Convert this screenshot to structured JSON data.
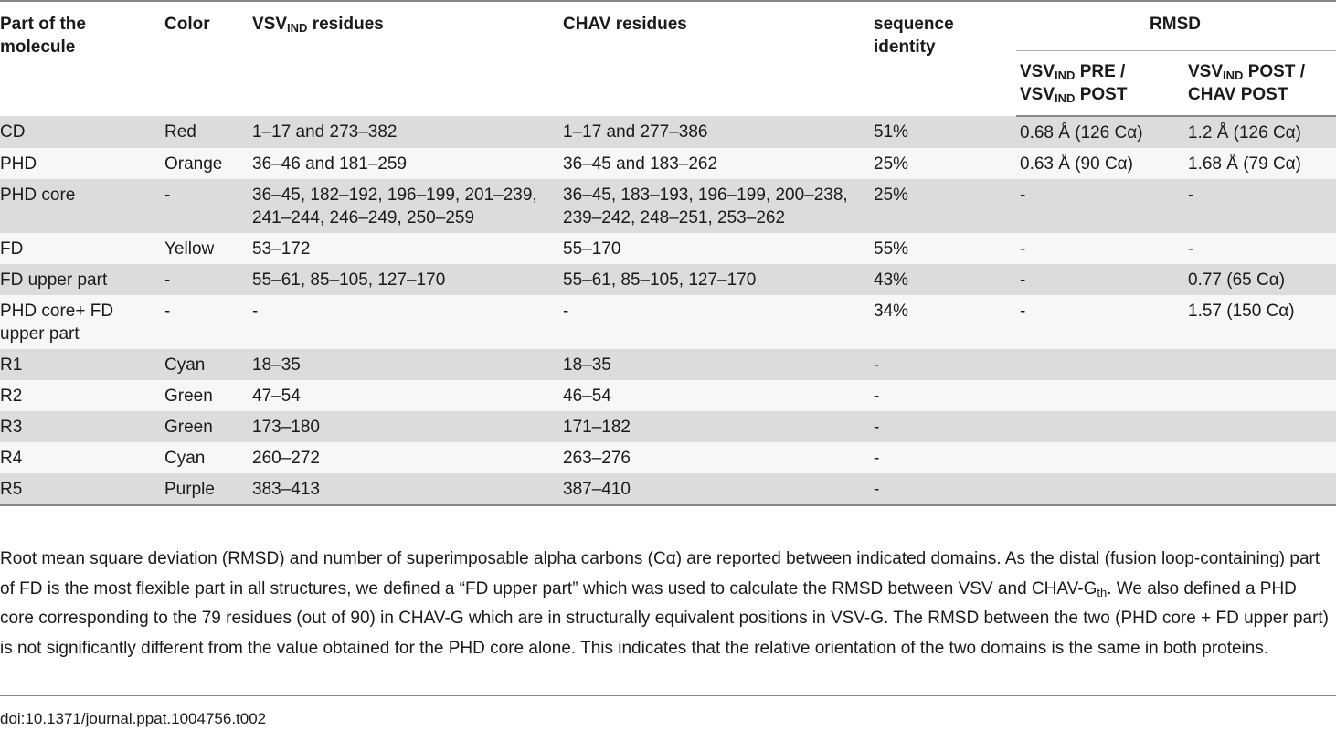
{
  "headers": {
    "part": "Part of the molecule",
    "color": "Color",
    "vsv_prefix": "VSV",
    "vsv_sub": "IND",
    "vsv_suffix": " residues",
    "chav": "CHAV residues",
    "seq_identity": "sequence identity",
    "rmsd": "RMSD",
    "rmsd1_a": "VSV",
    "rmsd1_a_sub": "IND",
    "rmsd1_b": " PRE /",
    "rmsd1_c": "VSV",
    "rmsd1_c_sub": "IND",
    "rmsd1_d": " POST",
    "rmsd2_a": "VSV",
    "rmsd2_a_sub": "IND",
    "rmsd2_b": " POST /",
    "rmsd2_c": "CHAV POST"
  },
  "rows": [
    {
      "part": "CD",
      "color": "Red",
      "vsv": "1–17 and 273–382",
      "chav": "1–17 and 277–386",
      "identity": "51%",
      "rmsd_pre_post": "0.68 Å (126 Cα)",
      "rmsd_post_chav": "1.2 Å (126 Cα)"
    },
    {
      "part": "PHD",
      "color": "Orange",
      "vsv": "36–46 and 181–259",
      "chav": "36–45 and 183–262",
      "identity": "25%",
      "rmsd_pre_post": "0.63 Å (90 Cα)",
      "rmsd_post_chav": "1.68 Å (79 Cα)"
    },
    {
      "part": "PHD core",
      "color": "-",
      "vsv": "36–45, 182–192, 196–199, 201–239, 241–244, 246–249, 250–259",
      "chav": "36–45, 183–193, 196–199, 200–238, 239–242, 248–251, 253–262",
      "identity": "25%",
      "rmsd_pre_post": "-",
      "rmsd_post_chav": "-"
    },
    {
      "part": "FD",
      "color": "Yellow",
      "vsv": "53–172",
      "chav": "55–170",
      "identity": "55%",
      "rmsd_pre_post": "-",
      "rmsd_post_chav": "-"
    },
    {
      "part": "FD upper part",
      "color": "-",
      "vsv": "55–61, 85–105, 127–170",
      "chav": "55–61, 85–105, 127–170",
      "identity": "43%",
      "rmsd_pre_post": "-",
      "rmsd_post_chav": "0.77 (65 Cα)"
    },
    {
      "part": "PHD core+ FD upper part",
      "color": "-",
      "vsv": "-",
      "chav": "-",
      "identity": "34%",
      "rmsd_pre_post": "-",
      "rmsd_post_chav": "1.57 (150 Cα)"
    },
    {
      "part": "R1",
      "color": "Cyan",
      "vsv": "18–35",
      "chav": "18–35",
      "identity": "-",
      "rmsd_pre_post": "",
      "rmsd_post_chav": ""
    },
    {
      "part": "R2",
      "color": "Green",
      "vsv": "47–54",
      "chav": "46–54",
      "identity": "-",
      "rmsd_pre_post": "",
      "rmsd_post_chav": ""
    },
    {
      "part": "R3",
      "color": "Green",
      "vsv": "173–180",
      "chav": "171–182",
      "identity": "-",
      "rmsd_pre_post": "",
      "rmsd_post_chav": ""
    },
    {
      "part": "R4",
      "color": "Cyan",
      "vsv": "260–272",
      "chav": "263–276",
      "identity": "-",
      "rmsd_pre_post": "",
      "rmsd_post_chav": ""
    },
    {
      "part": "R5",
      "color": "Purple",
      "vsv": "383–413",
      "chav": "387–410",
      "identity": "-",
      "rmsd_pre_post": "",
      "rmsd_post_chav": ""
    }
  ],
  "footnote": {
    "text_before_sub": "Root mean square deviation (RMSD) and number of superimposable alpha carbons (Cα) are reported between indicated domains. As the distal (fusion loop-containing) part of FD is the most flexible part in all structures, we defined a “FD upper part” which was used to calculate the RMSD between VSV and CHAV-G",
    "sub": "th",
    "text_after_sub": ". We also defined a PHD core corresponding to the 79 residues (out of 90) in CHAV-G which are in structurally equivalent positions in VSV-G. The RMSD between the two (PHD core + FD upper part) is not significantly different from the value obtained for the PHD core alone. This indicates that the relative orientation of the two domains is the same in both proteins."
  },
  "doi": "doi:10.1371/journal.ppat.1004756.t002"
}
